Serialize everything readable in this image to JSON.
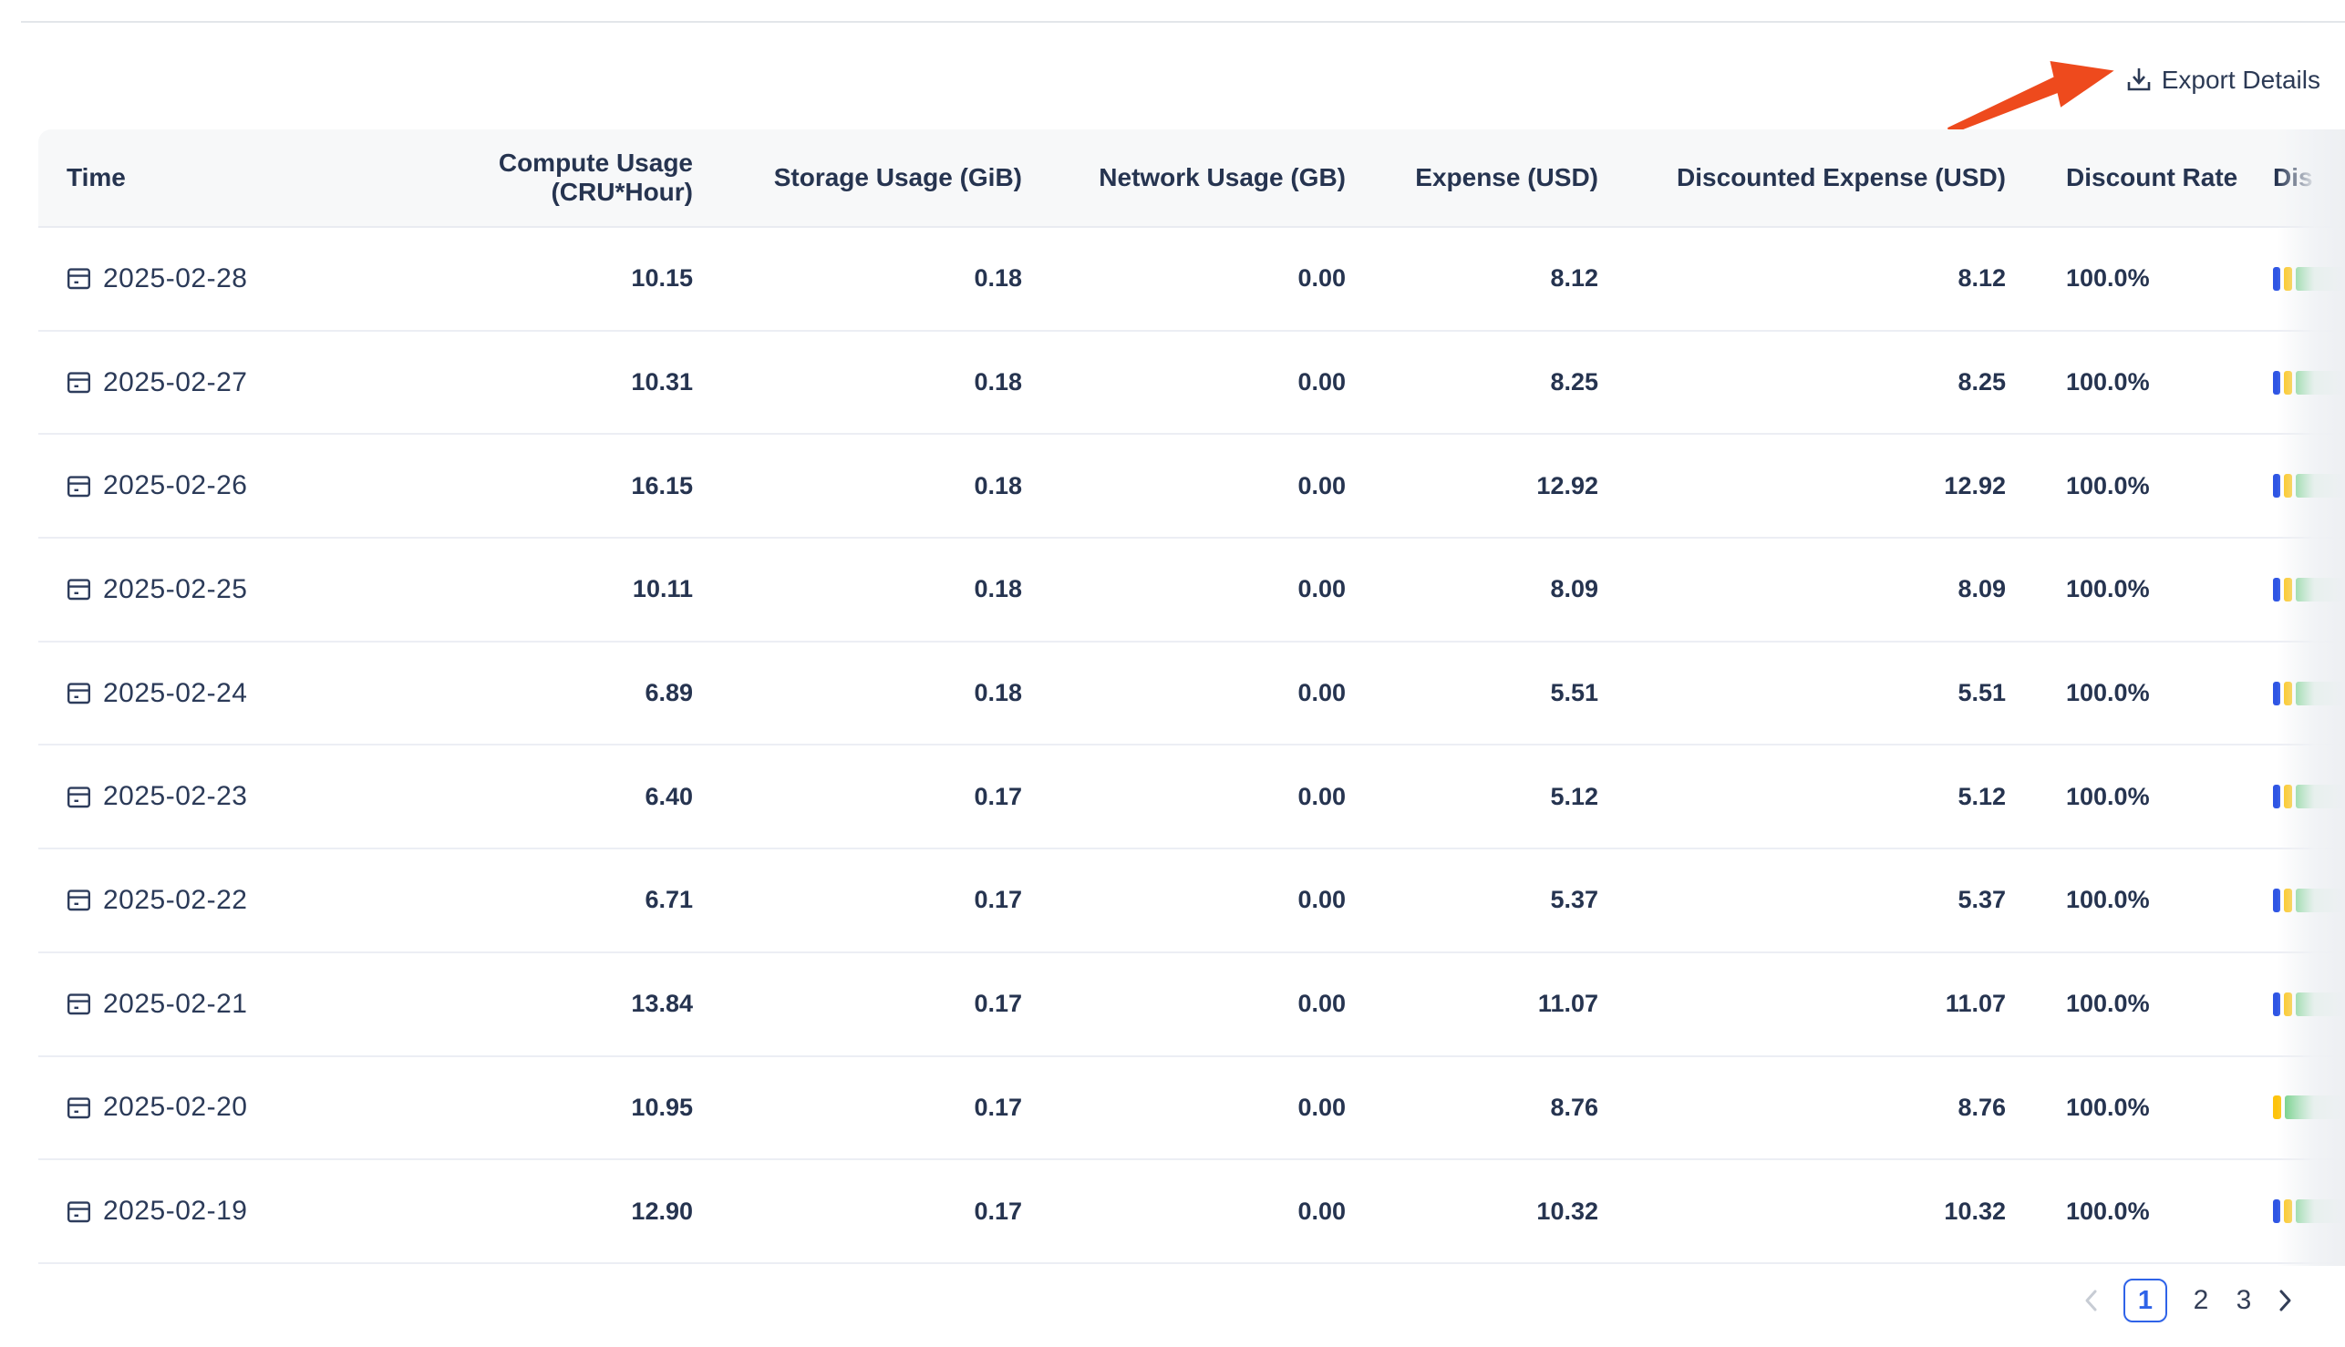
{
  "export": {
    "label": "Export Details",
    "icon": "download-icon",
    "text_color": "#2c3a55",
    "arrow_color": "#ee4a1d"
  },
  "table": {
    "header_bg": "#f7f8f9",
    "columns": [
      {
        "id": "time",
        "label": "Time",
        "align": "left"
      },
      {
        "id": "compute",
        "label": "Compute Usage (CRU*Hour)",
        "align": "right"
      },
      {
        "id": "storage",
        "label": "Storage Usage (GiB)",
        "align": "right"
      },
      {
        "id": "network",
        "label": "Network Usage (GB)",
        "align": "right"
      },
      {
        "id": "expense",
        "label": "Expense (USD)",
        "align": "right"
      },
      {
        "id": "discounted",
        "label": "Discounted Expense (USD)",
        "align": "right"
      },
      {
        "id": "rate",
        "label": "Discount Rate",
        "align": "left"
      },
      {
        "id": "distribution",
        "label": "Dis",
        "align": "left"
      }
    ],
    "row_icon": "calendar-icon",
    "bar_colors": {
      "blue": "#2e55e4",
      "yellow": "#fdc30c",
      "green_start": "#5fcb77",
      "green_end": "#bdebd2"
    },
    "rows": [
      {
        "time": "2025-02-28",
        "compute": "10.15",
        "storage": "0.18",
        "network": "0.00",
        "expense": "8.12",
        "discounted": "8.12",
        "rate": "100.0%",
        "segments": [
          "blue",
          "yellow",
          "green"
        ]
      },
      {
        "time": "2025-02-27",
        "compute": "10.31",
        "storage": "0.18",
        "network": "0.00",
        "expense": "8.25",
        "discounted": "8.25",
        "rate": "100.0%",
        "segments": [
          "blue",
          "yellow",
          "green"
        ]
      },
      {
        "time": "2025-02-26",
        "compute": "16.15",
        "storage": "0.18",
        "network": "0.00",
        "expense": "12.92",
        "discounted": "12.92",
        "rate": "100.0%",
        "segments": [
          "blue",
          "yellow",
          "green"
        ]
      },
      {
        "time": "2025-02-25",
        "compute": "10.11",
        "storage": "0.18",
        "network": "0.00",
        "expense": "8.09",
        "discounted": "8.09",
        "rate": "100.0%",
        "segments": [
          "blue",
          "yellow",
          "green"
        ]
      },
      {
        "time": "2025-02-24",
        "compute": "6.89",
        "storage": "0.18",
        "network": "0.00",
        "expense": "5.51",
        "discounted": "5.51",
        "rate": "100.0%",
        "segments": [
          "blue",
          "yellow",
          "green"
        ]
      },
      {
        "time": "2025-02-23",
        "compute": "6.40",
        "storage": "0.17",
        "network": "0.00",
        "expense": "5.12",
        "discounted": "5.12",
        "rate": "100.0%",
        "segments": [
          "blue",
          "yellow",
          "green"
        ]
      },
      {
        "time": "2025-02-22",
        "compute": "6.71",
        "storage": "0.17",
        "network": "0.00",
        "expense": "5.37",
        "discounted": "5.37",
        "rate": "100.0%",
        "segments": [
          "blue",
          "yellow",
          "green"
        ]
      },
      {
        "time": "2025-02-21",
        "compute": "13.84",
        "storage": "0.17",
        "network": "0.00",
        "expense": "11.07",
        "discounted": "11.07",
        "rate": "100.0%",
        "segments": [
          "blue",
          "yellow",
          "green"
        ]
      },
      {
        "time": "2025-02-20",
        "compute": "10.95",
        "storage": "0.17",
        "network": "0.00",
        "expense": "8.76",
        "discounted": "8.76",
        "rate": "100.0%",
        "segments": [
          "yellow",
          "green"
        ]
      },
      {
        "time": "2025-02-19",
        "compute": "12.90",
        "storage": "0.17",
        "network": "0.00",
        "expense": "10.32",
        "discounted": "10.32",
        "rate": "100.0%",
        "segments": [
          "blue",
          "yellow",
          "green"
        ]
      }
    ]
  },
  "pagination": {
    "prev_icon": "chevron-left-icon",
    "next_icon": "chevron-right-icon",
    "pages": [
      {
        "label": "1",
        "active": true
      },
      {
        "label": "2",
        "active": false
      },
      {
        "label": "3",
        "active": false
      }
    ],
    "active_color": "#2f63e8"
  }
}
